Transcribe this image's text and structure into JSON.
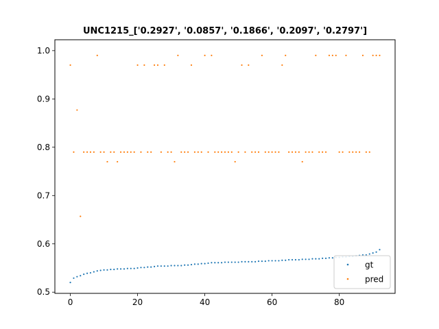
{
  "chart_data": {
    "type": "scatter",
    "title": "UNC1215_['0.2927', '0.0857', '0.1866', '0.2097', '0.2797']",
    "xlabel": "",
    "ylabel": "",
    "xlim": [
      -4.6,
      96.6
    ],
    "ylim": [
      0.4975,
      1.0225
    ],
    "x_ticks": [
      0,
      20,
      40,
      60,
      80
    ],
    "x_tick_labels": [
      "0",
      "20",
      "40",
      "60",
      "80"
    ],
    "y_ticks": [
      0.5,
      0.6,
      0.7,
      0.8,
      0.9,
      1.0
    ],
    "y_tick_labels": [
      "0.5",
      "0.6",
      "0.7",
      "0.8",
      "0.9",
      "1.0"
    ],
    "grid": false,
    "legend_position": "lower right",
    "series": [
      {
        "name": "gt",
        "color": "#1f77b4",
        "x": [
          0,
          1,
          2,
          3,
          4,
          5,
          6,
          7,
          8,
          9,
          10,
          11,
          12,
          13,
          14,
          15,
          16,
          17,
          18,
          19,
          20,
          21,
          22,
          23,
          24,
          25,
          26,
          27,
          28,
          29,
          30,
          31,
          32,
          33,
          34,
          35,
          36,
          37,
          38,
          39,
          40,
          41,
          42,
          43,
          44,
          45,
          46,
          47,
          48,
          49,
          50,
          51,
          52,
          53,
          54,
          55,
          56,
          57,
          58,
          59,
          60,
          61,
          62,
          63,
          64,
          65,
          66,
          67,
          68,
          69,
          70,
          71,
          72,
          73,
          74,
          75,
          76,
          77,
          78,
          79,
          80,
          81,
          82,
          83,
          84,
          85,
          86,
          87,
          88,
          89,
          90,
          91,
          92
        ],
        "y": [
          0.52,
          0.529,
          0.532,
          0.534,
          0.537,
          0.539,
          0.54,
          0.542,
          0.544,
          0.545,
          0.546,
          0.546,
          0.547,
          0.547,
          0.548,
          0.548,
          0.548,
          0.549,
          0.549,
          0.549,
          0.55,
          0.551,
          0.551,
          0.552,
          0.552,
          0.553,
          0.554,
          0.554,
          0.554,
          0.554,
          0.555,
          0.555,
          0.555,
          0.555,
          0.556,
          0.556,
          0.557,
          0.558,
          0.558,
          0.559,
          0.559,
          0.56,
          0.561,
          0.561,
          0.561,
          0.561,
          0.562,
          0.562,
          0.562,
          0.562,
          0.562,
          0.563,
          0.563,
          0.563,
          0.563,
          0.563,
          0.564,
          0.564,
          0.564,
          0.565,
          0.565,
          0.565,
          0.565,
          0.566,
          0.566,
          0.567,
          0.567,
          0.567,
          0.567,
          0.568,
          0.568,
          0.568,
          0.569,
          0.569,
          0.569,
          0.57,
          0.57,
          0.571,
          0.571,
          0.572,
          0.572,
          0.573,
          0.573,
          0.574,
          0.574,
          0.575,
          0.576,
          0.577,
          0.577,
          0.579,
          0.581,
          0.583,
          0.588
        ]
      },
      {
        "name": "pred",
        "color": "#ff7f0e",
        "x": [
          0,
          1,
          2,
          3,
          4,
          5,
          6,
          7,
          8,
          9,
          10,
          11,
          12,
          13,
          14,
          15,
          16,
          17,
          18,
          19,
          20,
          21,
          22,
          23,
          24,
          25,
          26,
          27,
          28,
          29,
          30,
          31,
          32,
          33,
          34,
          35,
          36,
          37,
          38,
          39,
          40,
          41,
          42,
          43,
          44,
          45,
          46,
          47,
          48,
          49,
          50,
          51,
          52,
          53,
          54,
          55,
          56,
          57,
          58,
          59,
          60,
          61,
          62,
          63,
          64,
          65,
          66,
          67,
          68,
          69,
          70,
          71,
          72,
          73,
          74,
          75,
          76,
          77,
          78,
          79,
          80,
          81,
          82,
          83,
          84,
          85,
          86,
          87,
          88,
          89,
          90,
          91,
          92
        ],
        "y": [
          0.97,
          0.79,
          0.877,
          0.657,
          0.79,
          0.79,
          0.79,
          0.79,
          0.99,
          0.79,
          0.79,
          0.77,
          0.79,
          0.79,
          0.77,
          0.79,
          0.79,
          0.79,
          0.79,
          0.79,
          0.97,
          0.79,
          0.97,
          0.79,
          0.79,
          0.97,
          0.97,
          0.79,
          0.97,
          0.79,
          0.79,
          0.77,
          0.99,
          0.79,
          0.79,
          0.79,
          0.97,
          0.79,
          0.79,
          0.79,
          0.99,
          0.79,
          0.99,
          0.79,
          0.79,
          0.79,
          0.79,
          0.79,
          0.79,
          0.77,
          0.79,
          0.97,
          0.79,
          0.97,
          0.79,
          0.79,
          0.79,
          0.99,
          0.79,
          0.79,
          0.79,
          0.79,
          0.79,
          0.97,
          0.99,
          0.79,
          0.79,
          0.79,
          0.79,
          0.77,
          0.79,
          0.79,
          0.79,
          0.99,
          0.79,
          0.79,
          0.79,
          0.99,
          0.99,
          0.99,
          0.79,
          0.79,
          0.99,
          0.79,
          0.79,
          0.79,
          0.79,
          0.99,
          0.79,
          0.79,
          0.99,
          0.99,
          0.99
        ]
      }
    ]
  }
}
